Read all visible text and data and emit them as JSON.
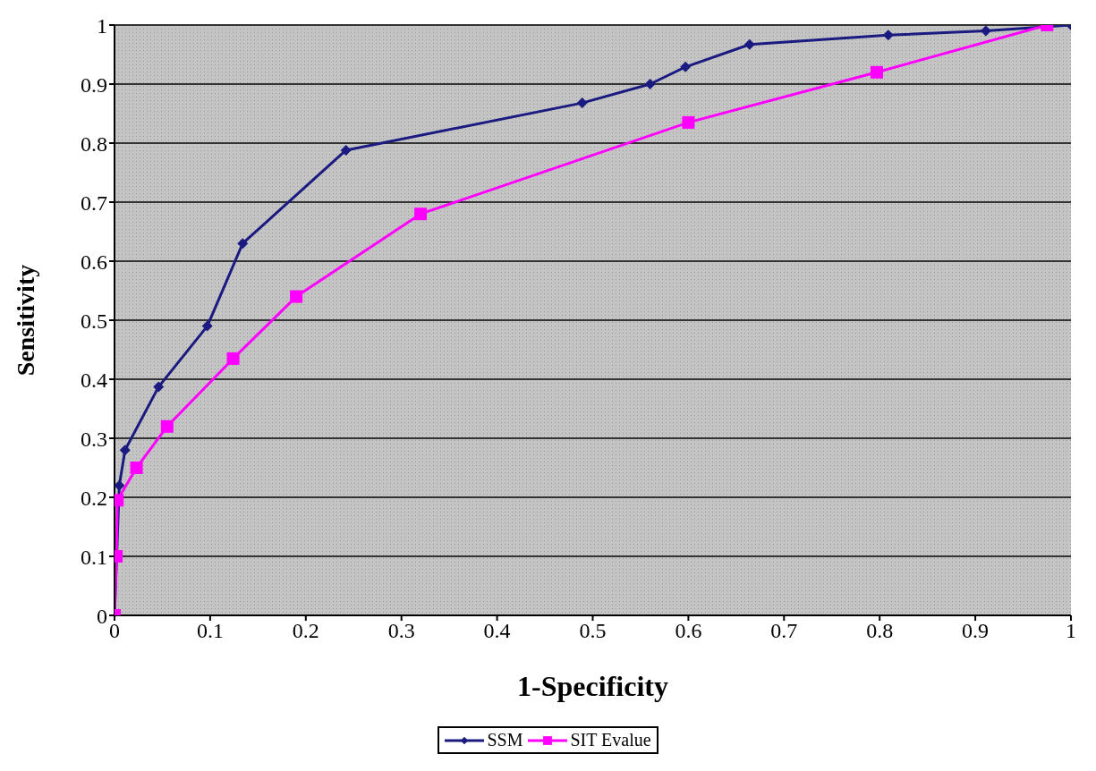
{
  "chart_data": {
    "type": "line",
    "xlabel": "1-Specificity",
    "ylabel": "Sensitivity",
    "xlim": [
      0,
      1
    ],
    "ylim": [
      0,
      1
    ],
    "xticks": [
      0,
      0.1,
      0.2,
      0.3,
      0.4,
      0.5,
      0.6,
      0.7,
      0.8,
      0.9,
      1
    ],
    "yticks": [
      0,
      0.1,
      0.2,
      0.3,
      0.4,
      0.5,
      0.6,
      0.7,
      0.8,
      0.9,
      1
    ],
    "grid": "y",
    "legend": "bottom",
    "series": [
      {
        "name": "SSM",
        "color": "#1a1a80",
        "marker": "diamond",
        "x": [
          0,
          0.005,
          0.011,
          0.046,
          0.097,
          0.134,
          0.242,
          0.489,
          0.56,
          0.597,
          0.664,
          0.809,
          0.911,
          1
        ],
        "values": [
          0,
          0.22,
          0.28,
          0.387,
          0.49,
          0.63,
          0.788,
          0.868,
          0.9,
          0.929,
          0.967,
          0.983,
          0.99,
          1
        ]
      },
      {
        "name": "SIT Evalue",
        "color": "#ff00ff",
        "marker": "square",
        "x": [
          0,
          0.002,
          0.003,
          0.023,
          0.055,
          0.124,
          0.19,
          0.32,
          0.6,
          0.797,
          0.975
        ],
        "values": [
          0,
          0.1,
          0.195,
          0.25,
          0.32,
          0.435,
          0.54,
          0.68,
          0.835,
          0.92,
          1
        ]
      }
    ]
  }
}
